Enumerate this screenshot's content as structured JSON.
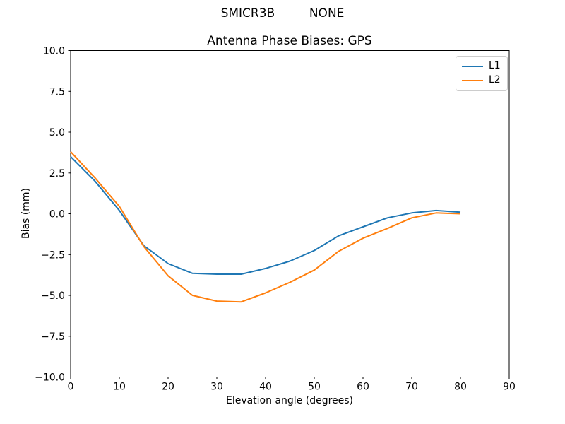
{
  "figure": {
    "background": "#ffffff",
    "suptitle": "SMICR3B         NONE"
  },
  "chart_data": {
    "type": "line",
    "title": "Antenna Phase Biases: GPS",
    "xlabel": "Elevation angle (degrees)",
    "ylabel": "Bias (mm)",
    "xlim": [
      0,
      90
    ],
    "ylim": [
      -10,
      10
    ],
    "grid": false,
    "xticks": [
      0,
      10,
      20,
      30,
      40,
      50,
      60,
      70,
      80,
      90
    ],
    "xticklabels": [
      "0",
      "10",
      "20",
      "30",
      "40",
      "50",
      "60",
      "70",
      "80",
      "90"
    ],
    "yticks": [
      10.0,
      7.5,
      5.0,
      2.5,
      0.0,
      -2.5,
      -5.0,
      -7.5,
      -10.0
    ],
    "yticklabels": [
      "10.0",
      "7.5",
      "5.0",
      "2.5",
      "0.0",
      "−2.5",
      "−5.0",
      "−7.5",
      "−10.0"
    ],
    "x": [
      0,
      5,
      10,
      15,
      20,
      25,
      30,
      35,
      40,
      45,
      50,
      55,
      60,
      65,
      70,
      75,
      80
    ],
    "series": [
      {
        "name": "L1",
        "color": "#1f77b4",
        "values": [
          3.5,
          2.0,
          0.2,
          -1.95,
          -3.05,
          -3.65,
          -3.7,
          -3.7,
          -3.35,
          -2.9,
          -2.25,
          -1.35,
          -0.8,
          -0.25,
          0.05,
          0.2,
          0.1
        ]
      },
      {
        "name": "L2",
        "color": "#ff7f0e",
        "values": [
          3.8,
          2.2,
          0.45,
          -2.0,
          -3.8,
          -5.0,
          -5.35,
          -5.4,
          -4.85,
          -4.2,
          -3.45,
          -2.3,
          -1.5,
          -0.9,
          -0.25,
          0.05,
          0.0
        ]
      }
    ],
    "legend": {
      "position": "upper right",
      "entries": [
        "L1",
        "L2"
      ]
    },
    "axes_color": "#000000",
    "text_color": "#000000"
  }
}
